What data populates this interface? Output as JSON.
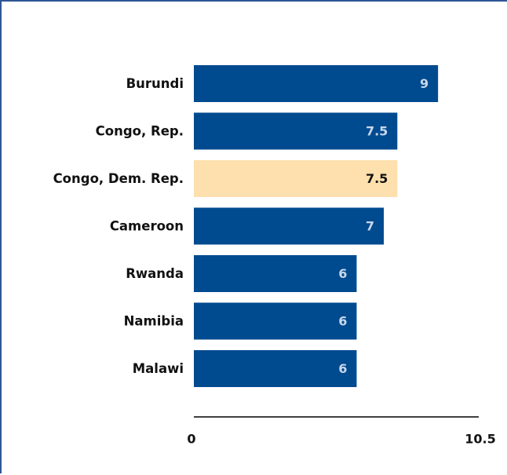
{
  "chart_data": {
    "type": "bar",
    "orientation": "horizontal",
    "categories": [
      "Burundi",
      "Congo, Rep.",
      "Congo, Dem. Rep.",
      "Cameroon",
      "Rwanda",
      "Namibia",
      "Malawi"
    ],
    "values": [
      9,
      7.5,
      7.5,
      7,
      6,
      6,
      6
    ],
    "value_labels": [
      "9",
      "7.5",
      "7.5",
      "7",
      "6",
      "6",
      "6"
    ],
    "highlighted_category": "Congo, Dem. Rep.",
    "xlim": [
      0,
      10.5
    ],
    "x_ticks": [
      "0",
      "10.5"
    ],
    "grid": false,
    "colors": {
      "bar": "#004a8f",
      "highlight": "#fde0ad",
      "label_on_bar": "#c9d7ea",
      "label_on_highlight": "#111111",
      "axis": "#000000",
      "border": "#2f5597"
    }
  }
}
